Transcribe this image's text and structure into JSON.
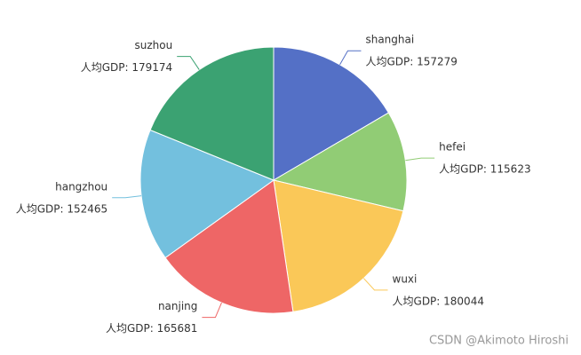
{
  "chart_data": {
    "type": "pie",
    "categories": [
      "shanghai",
      "hefei",
      "wuxi",
      "nanjing",
      "hangzhou",
      "suzhou"
    ],
    "values": [
      157279,
      115623,
      180044,
      165681,
      152465,
      179174
    ],
    "value_labels": [
      "人均GDP: 157279",
      "人均GDP: 115623",
      "人均GDP: 180044",
      "人均GDP: 165681",
      "人均GDP: 152465",
      "人均GDP: 179174"
    ],
    "colors": [
      "#5470c6",
      "#91cc75",
      "#fac858",
      "#ee6666",
      "#73c0de",
      "#3ba272"
    ]
  },
  "watermark": "CSDN @Akimoto Hiroshi"
}
